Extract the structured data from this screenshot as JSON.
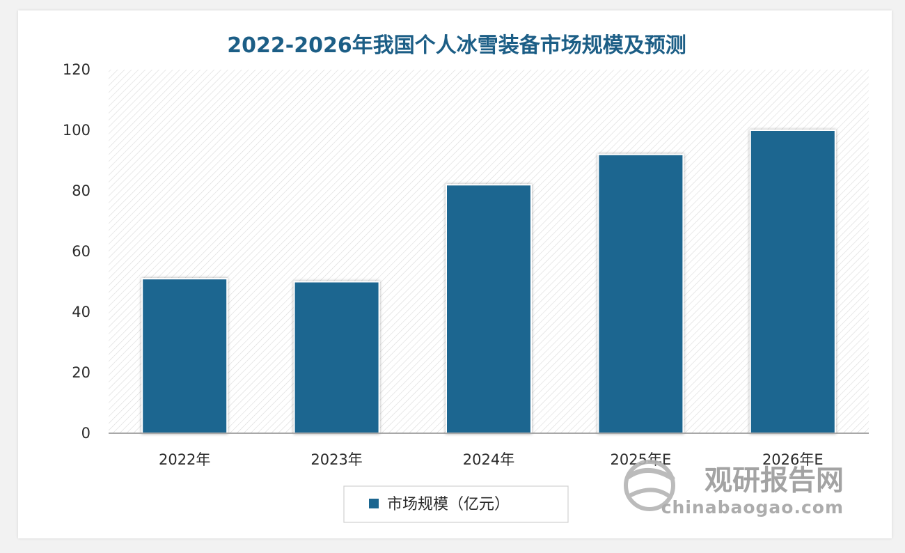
{
  "chart_data": {
    "type": "bar",
    "title": "2022-2026年我国个人冰雪装备市场规模及预测",
    "categories": [
      "2022年",
      "2023年",
      "2024年",
      "2025年E",
      "2026年E"
    ],
    "series": [
      {
        "name": "市场规模（亿元）",
        "values": [
          51,
          50,
          82,
          92,
          100
        ]
      }
    ],
    "ylim": [
      0,
      120
    ],
    "yticks": [
      0,
      20,
      40,
      60,
      80,
      100,
      120
    ],
    "grid": false,
    "legend": "bottom",
    "colors": {
      "bar": "#1b6690",
      "title": "#1c5e86",
      "plot_bg_hatch": "#dcdcdc"
    }
  },
  "watermark": {
    "cn": "观研报告网",
    "en": "chinabaogao.com"
  }
}
